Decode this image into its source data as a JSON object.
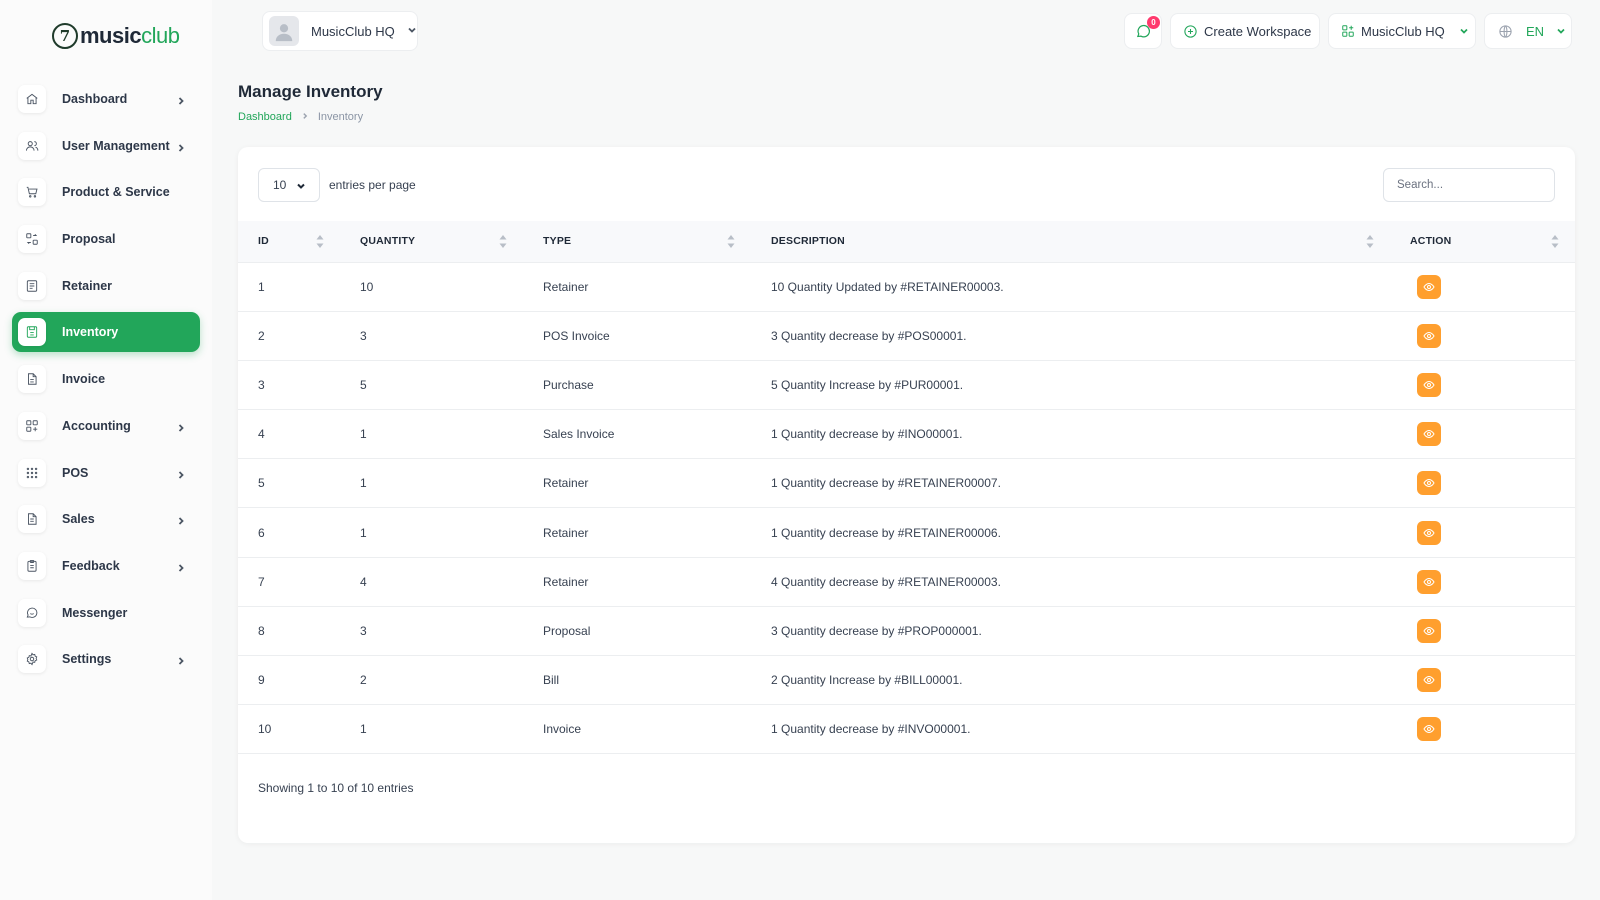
{
  "brand": {
    "logo_mark": "7",
    "logo_bold": "music",
    "logo_light": "club"
  },
  "header": {
    "workspace_name": "MusicClub HQ",
    "notification_count": "0",
    "create_workspace_label": "Create Workspace",
    "workspace_button_label": "MusicClub HQ",
    "language": "EN"
  },
  "sidebar": {
    "items": [
      {
        "label": "Dashboard",
        "icon": "home-icon",
        "has_submenu": true,
        "active": false
      },
      {
        "label": "User Management",
        "icon": "users-icon",
        "has_submenu": true,
        "active": false
      },
      {
        "label": "Product & Service",
        "icon": "cart-icon",
        "has_submenu": false,
        "active": false
      },
      {
        "label": "Proposal",
        "icon": "exchange-icon",
        "has_submenu": false,
        "active": false
      },
      {
        "label": "Retainer",
        "icon": "file-invoice-icon",
        "has_submenu": false,
        "active": false
      },
      {
        "label": "Inventory",
        "icon": "inventory-icon",
        "has_submenu": false,
        "active": true
      },
      {
        "label": "Invoice",
        "icon": "file-icon",
        "has_submenu": false,
        "active": false
      },
      {
        "label": "Accounting",
        "icon": "grid-icon",
        "has_submenu": true,
        "active": false
      },
      {
        "label": "POS",
        "icon": "dots-grid-icon",
        "has_submenu": true,
        "active": false
      },
      {
        "label": "Sales",
        "icon": "file-text-icon",
        "has_submenu": true,
        "active": false
      },
      {
        "label": "Feedback",
        "icon": "clipboard-icon",
        "has_submenu": true,
        "active": false
      },
      {
        "label": "Messenger",
        "icon": "chat-icon",
        "has_submenu": false,
        "active": false
      },
      {
        "label": "Settings",
        "icon": "gear-icon",
        "has_submenu": true,
        "active": false
      }
    ]
  },
  "page": {
    "title": "Manage Inventory",
    "breadcrumb": {
      "link": "Dashboard",
      "current": "Inventory"
    }
  },
  "table": {
    "page_length": "10",
    "length_label": "entries per page",
    "search_placeholder": "Search...",
    "columns": [
      "ID",
      "QUANTITY",
      "TYPE",
      "DESCRIPTION",
      "ACTION"
    ],
    "rows": [
      {
        "id": "1",
        "quantity": "10",
        "type": "Retainer",
        "description": "10 Quantity Updated by #RETAINER00003."
      },
      {
        "id": "2",
        "quantity": "3",
        "type": "POS Invoice",
        "description": "3 Quantity decrease by #POS00001."
      },
      {
        "id": "3",
        "quantity": "5",
        "type": "Purchase",
        "description": "5 Quantity Increase by #PUR00001."
      },
      {
        "id": "4",
        "quantity": "1",
        "type": "Sales Invoice",
        "description": "1 Quantity decrease by #INO00001."
      },
      {
        "id": "5",
        "quantity": "1",
        "type": "Retainer",
        "description": "1 Quantity decrease by #RETAINER00007."
      },
      {
        "id": "6",
        "quantity": "1",
        "type": "Retainer",
        "description": "1 Quantity decrease by #RETAINER00006."
      },
      {
        "id": "7",
        "quantity": "4",
        "type": "Retainer",
        "description": "4 Quantity decrease by #RETAINER00003."
      },
      {
        "id": "8",
        "quantity": "3",
        "type": "Proposal",
        "description": "3 Quantity decrease by #PROP000001."
      },
      {
        "id": "9",
        "quantity": "2",
        "type": "Bill",
        "description": "2 Quantity Increase by #BILL00001."
      },
      {
        "id": "10",
        "quantity": "1",
        "type": "Invoice",
        "description": "1 Quantity decrease by #INVO00001."
      }
    ],
    "info": "Showing 1 to 10 of 10 entries"
  },
  "colors": {
    "primary": "#22a65a",
    "action": "#ff9f2e",
    "badge": "#ff3a6e"
  }
}
